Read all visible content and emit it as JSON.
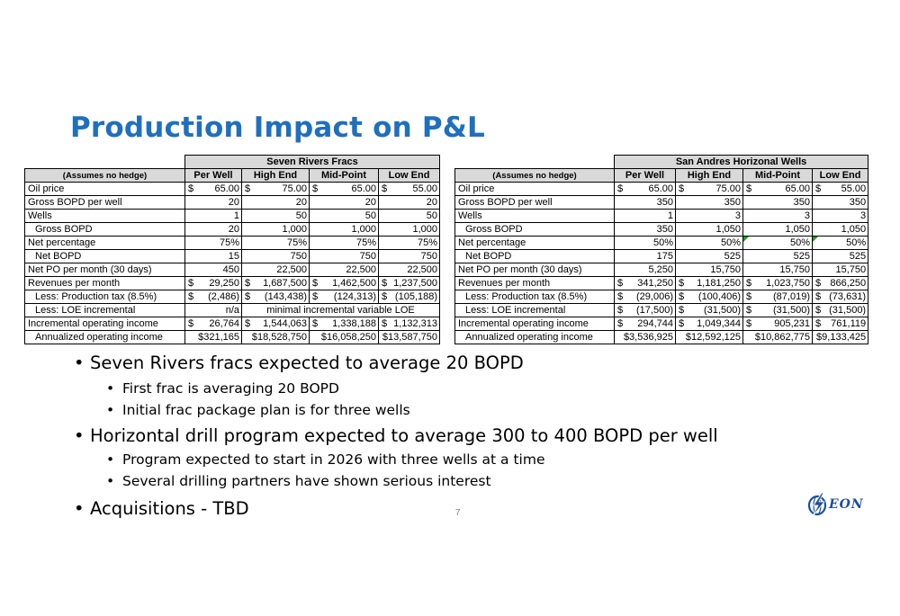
{
  "title": "Production Impact on P&L",
  "tables": [
    {
      "group_title": "Seven Rivers Fracs",
      "note": "(Assumes no hedge)",
      "headers": [
        "Per Well",
        "High End",
        "Mid-Point",
        "Low End"
      ],
      "rows": [
        {
          "label": "Oil price",
          "type": "dollar",
          "values": [
            "65.00",
            "75.00",
            "65.00",
            "55.00"
          ]
        },
        {
          "label": "Gross BOPD per well",
          "type": "plain",
          "values": [
            "20",
            "20",
            "20",
            "20"
          ]
        },
        {
          "label": "Wells",
          "type": "plain",
          "values": [
            "1",
            "50",
            "50",
            "50"
          ]
        },
        {
          "label": "Gross BOPD",
          "indent": true,
          "type": "plain",
          "values": [
            "20",
            "1,000",
            "1,000",
            "1,000"
          ]
        },
        {
          "label": "Net percentage",
          "type": "plain",
          "values": [
            "75%",
            "75%",
            "75%",
            "75%"
          ]
        },
        {
          "label": "Net BOPD",
          "indent": true,
          "type": "plain",
          "values": [
            "15",
            "750",
            "750",
            "750"
          ]
        },
        {
          "label": "Net PO per month (30 days)",
          "type": "plain",
          "values": [
            "450",
            "22,500",
            "22,500",
            "22,500"
          ]
        },
        {
          "label": "Revenues per month",
          "type": "dollar",
          "values": [
            "29,250",
            "1,687,500",
            "1,462,500",
            "1,237,500"
          ]
        },
        {
          "label": "Less: Production tax (8.5%)",
          "indent": true,
          "type": "dollar",
          "values": [
            "(2,486)",
            "(143,438)",
            "(124,313)",
            "(105,188)"
          ]
        },
        {
          "label": "Less: LOE incremental",
          "indent": true,
          "type": "merged",
          "first": "n/a",
          "merged": "minimal incremental variable LOE"
        },
        {
          "label": "Incremental operating income",
          "type": "dollar",
          "values": [
            "26,764",
            "1,544,063",
            "1,338,188",
            "1,132,313"
          ]
        },
        {
          "label": "Annualized operating income",
          "indent": true,
          "type": "plain",
          "values": [
            "$321,165",
            "$18,528,750",
            "$16,058,250",
            "$13,587,750"
          ]
        }
      ]
    },
    {
      "group_title": "San Andres Horizonal Wells",
      "note": "(Assumes no hedge)",
      "headers": [
        "Per Well",
        "High End",
        "Mid-Point",
        "Low End"
      ],
      "rows": [
        {
          "label": "Oil price",
          "type": "dollar",
          "values": [
            "65.00",
            "75.00",
            "65.00",
            "55.00"
          ]
        },
        {
          "label": "Gross BOPD per well",
          "type": "plain",
          "values": [
            "350",
            "350",
            "350",
            "350"
          ]
        },
        {
          "label": "Wells",
          "type": "plain",
          "values": [
            "1",
            "3",
            "3",
            "3"
          ]
        },
        {
          "label": "Gross BOPD",
          "indent": true,
          "type": "plain",
          "values": [
            "350",
            "1,050",
            "1,050",
            "1,050"
          ]
        },
        {
          "label": "Net percentage",
          "type": "plain",
          "values": [
            "50%",
            "50%",
            "50%",
            "50%"
          ],
          "flags": [
            false,
            false,
            true,
            true
          ]
        },
        {
          "label": "Net BOPD",
          "indent": true,
          "type": "plain",
          "values": [
            "175",
            "525",
            "525",
            "525"
          ]
        },
        {
          "label": "Net PO per month (30 days)",
          "type": "plain",
          "values": [
            "5,250",
            "15,750",
            "15,750",
            "15,750"
          ]
        },
        {
          "label": "Revenues per month",
          "type": "dollar",
          "values": [
            "341,250",
            "1,181,250",
            "1,023,750",
            "866,250"
          ]
        },
        {
          "label": "Less: Production tax (8.5%)",
          "indent": true,
          "type": "dollar",
          "values": [
            "(29,006)",
            "(100,406)",
            "(87,019)",
            "(73,631)"
          ]
        },
        {
          "label": "Less: LOE incremental",
          "indent": true,
          "type": "dollar",
          "values": [
            "(17,500)",
            "(31,500)",
            "(31,500)",
            "(31,500)"
          ]
        },
        {
          "label": "Incremental operating income",
          "type": "dollar",
          "values": [
            "294,744",
            "1,049,344",
            "905,231",
            "761,119"
          ]
        },
        {
          "label": "Annualized operating income",
          "indent": true,
          "type": "plain",
          "values": [
            "$3,536,925",
            "$12,592,125",
            "$10,862,775",
            "$9,133,425"
          ]
        }
      ]
    }
  ],
  "currency_symbol": "$",
  "bullets": [
    {
      "level": 1,
      "text": "Seven Rivers fracs expected to average 20 BOPD"
    },
    {
      "level": 2,
      "text": "First frac is averaging 20 BOPD"
    },
    {
      "level": 2,
      "text": "Initial frac package plan is for three wells"
    },
    {
      "level": 1,
      "text": "Horizontal drill program expected to average 300 to 400 BOPD per well"
    },
    {
      "level": 2,
      "text": "Program expected to start in 2026 with three wells at a time"
    },
    {
      "level": 2,
      "text": "Several drilling partners have shown serious interest"
    },
    {
      "level": 1,
      "text": "Acquisitions - TBD"
    }
  ],
  "bullet_glyph": "•",
  "page_number": "7",
  "logo": {
    "text": "EON",
    "icon": "lightning-globe-icon",
    "color": "#1c4f9c"
  },
  "colors": {
    "title": "#1f6fc1",
    "header_fill": "#d9d9d9",
    "flag": "#1e9b1e"
  }
}
